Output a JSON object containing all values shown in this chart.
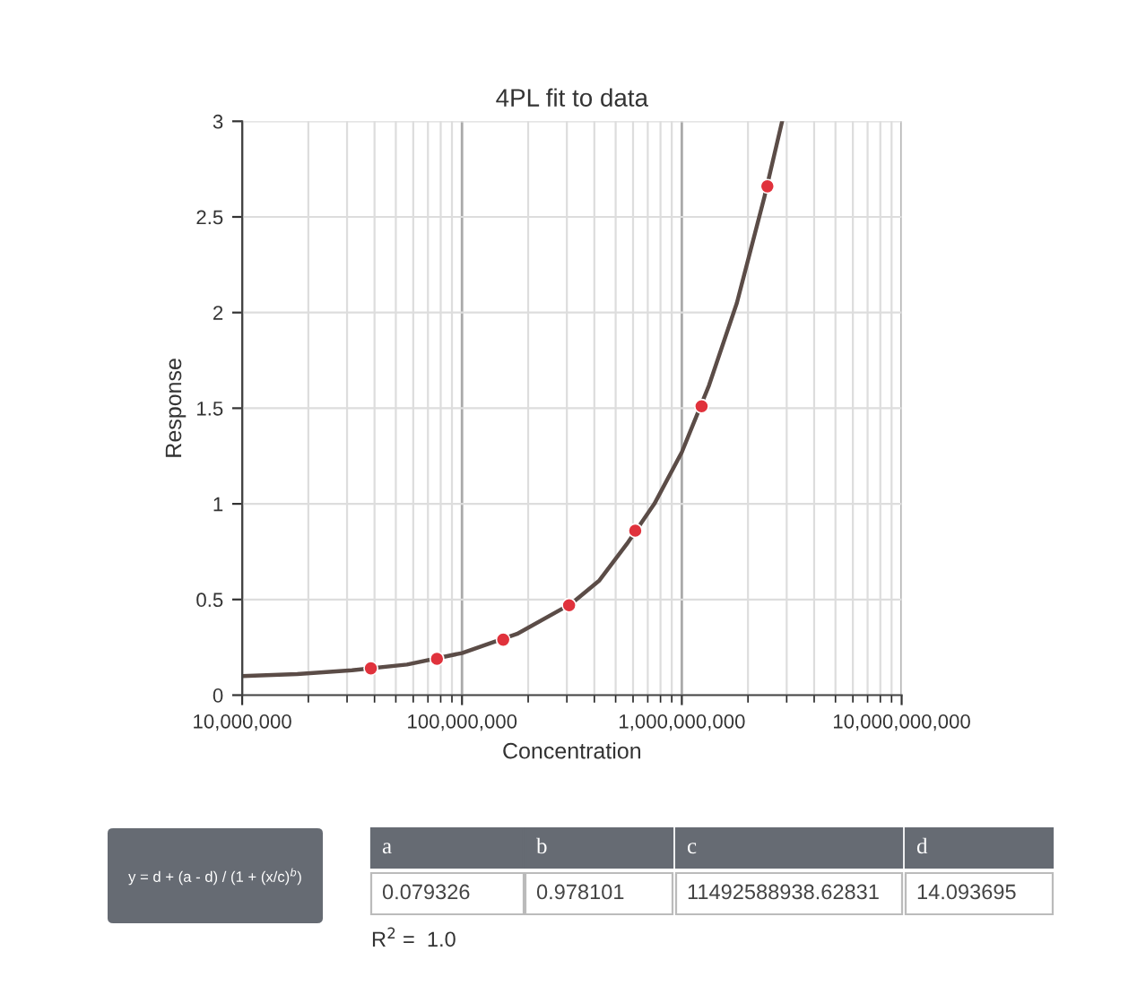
{
  "chart_data": {
    "type": "scatter",
    "title": "4PL fit to data",
    "xlabel": "Concentration",
    "ylabel": "Response",
    "log": "x",
    "grid": true,
    "legend": false,
    "xlim": [
      10000000,
      10000000000
    ],
    "xticks": [
      {
        "value": 10000000,
        "label": "10,000,000"
      },
      {
        "value": 100000000,
        "label": "100,000,000"
      },
      {
        "value": 1000000000,
        "label": "1,000,000,000"
      },
      {
        "value": 10000000000,
        "label": "10,000,000,000"
      }
    ],
    "ylim": [
      0,
      3
    ],
    "yticks": [
      0,
      0.5,
      1,
      1.5,
      2,
      2.5,
      3
    ],
    "series": [
      {
        "type": "line",
        "color": "#5b4c47",
        "marker": "none",
        "line_style": "solid",
        "x": [
          10000000,
          17800000,
          31600000,
          56200000,
          100000000,
          178000000,
          316000000,
          422000000,
          562000000,
          750000000,
          1000000000,
          1330000000,
          1780000000,
          2370000000,
          2860000000
        ],
        "values": [
          0.1,
          0.11,
          0.13,
          0.16,
          0.22,
          0.32,
          0.48,
          0.6,
          0.79,
          1.0,
          1.27,
          1.62,
          2.05,
          2.6,
          3.0
        ]
      },
      {
        "color": "#e0323c",
        "marker": "circle",
        "x": [
          38500000,
          76900000,
          154000000,
          307000000,
          614000000,
          1230000000,
          2450000000
        ],
        "values": [
          0.14,
          0.19,
          0.29,
          0.47,
          0.86,
          1.51,
          2.66
        ]
      }
    ],
    "annotations": [
      "y = d + (a - d) / (1 + (x/c)$^{b}$)",
      "a",
      "b",
      "c",
      "d",
      "0.079326",
      "0.978101",
      "11492588938.62831",
      "14.093695",
      "R$^{2}$ =  1.0"
    ]
  }
}
